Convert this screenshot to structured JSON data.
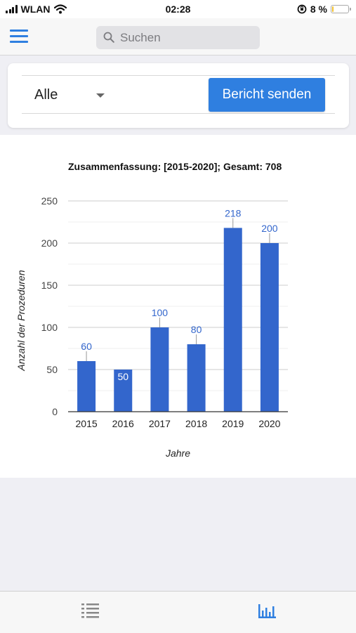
{
  "status_bar": {
    "carrier": "WLAN",
    "time": "02:28",
    "battery": "8 %",
    "battery_level": 0.08
  },
  "header": {
    "search_placeholder": "Suchen"
  },
  "filter": {
    "selected": "Alle",
    "send_label": "Bericht senden"
  },
  "colors": {
    "accent": "#2f7fe0",
    "bar": "#3366cc",
    "label_above": "#3366cc",
    "label_inside": "#ffffff"
  },
  "chart_data": {
    "type": "bar",
    "title": "Zusammenfassung: [2015-2020]; Gesamt: 708",
    "xlabel": "Jahre",
    "ylabel": "Anzahl der Prozeduren",
    "categories": [
      "2015",
      "2016",
      "2017",
      "2018",
      "2019",
      "2020"
    ],
    "values": [
      60,
      50,
      100,
      80,
      218,
      200
    ],
    "ylim": [
      0,
      250
    ],
    "yticks": [
      0,
      50,
      100,
      150,
      200,
      250
    ],
    "grid": true,
    "data_labels": true
  },
  "tabs": [
    {
      "name": "list",
      "icon": "list-icon",
      "active": false
    },
    {
      "name": "chart",
      "icon": "bar-chart-icon",
      "active": true
    }
  ]
}
